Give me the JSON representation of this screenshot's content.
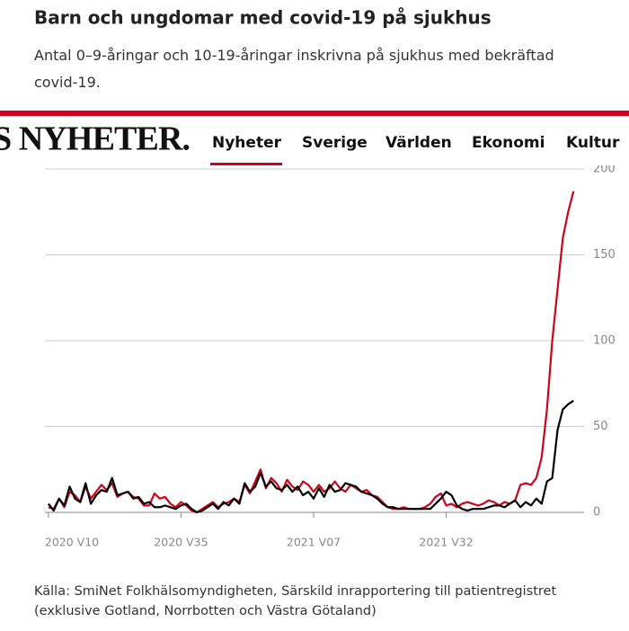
{
  "chart_data": {
    "type": "line",
    "title": "Barn och ungdomar med covid-19 på sjukhus",
    "subtitle": "Antal 0–9-åringar och 10-19-åringar inskrivna på sjukhus med bekräftad covid-19.",
    "source": [
      "Källa: SmiNet Folkhälsomyndigheten, Särskild inrapportering till patientregistret",
      "(exklusive Gotland, Norrbotten och Västra Götaland)"
    ],
    "series": [
      {
        "color": "#d0021b",
        "values": [
          3,
          2,
          8,
          3,
          12,
          10,
          6,
          15,
          8,
          12,
          16,
          13,
          17,
          9,
          11,
          12,
          9,
          8,
          4,
          4,
          11,
          8,
          9,
          5,
          3,
          6,
          4,
          1,
          0,
          2,
          4,
          6,
          3,
          5,
          6,
          8,
          6,
          16,
          11,
          18,
          25,
          14,
          20,
          17,
          12,
          19,
          15,
          13,
          18,
          16,
          12,
          16,
          12,
          14,
          18,
          14,
          12,
          16,
          14,
          12,
          13,
          10,
          9,
          6,
          3,
          2,
          2,
          3,
          2,
          2,
          2,
          3,
          5,
          9,
          11,
          4,
          5,
          3,
          5,
          6,
          5,
          4,
          5,
          7,
          6,
          4,
          6,
          5,
          7,
          16,
          17,
          16,
          20,
          32,
          60,
          100,
          130,
          160,
          175,
          187
        ]
      },
      {
        "color": "#000000",
        "values": [
          5,
          1,
          8,
          4,
          15,
          8,
          6,
          17,
          5,
          10,
          13,
          12,
          20,
          10,
          11,
          12,
          8,
          9,
          5,
          6,
          3,
          3,
          4,
          3,
          2,
          4,
          5,
          2,
          0,
          1,
          3,
          5,
          2,
          6,
          4,
          8,
          5,
          17,
          12,
          15,
          23,
          15,
          18,
          14,
          13,
          16,
          12,
          15,
          10,
          12,
          8,
          14,
          9,
          16,
          12,
          13,
          17,
          16,
          15,
          12,
          11,
          10,
          8,
          5,
          3,
          3,
          2,
          2,
          2,
          2,
          2,
          2,
          2,
          5,
          8,
          12,
          10,
          4,
          2,
          1,
          2,
          2,
          2,
          3,
          4,
          4,
          3,
          5,
          7,
          3,
          6,
          4,
          8,
          5,
          18,
          20,
          48,
          60,
          63,
          65
        ]
      }
    ],
    "xlim": [
      -1,
      101
    ],
    "xticks": [
      {
        "value": 0,
        "label": "2020 V10"
      },
      {
        "value": 25,
        "label": "2020 V35"
      },
      {
        "value": 50,
        "label": "2021 V07"
      },
      {
        "value": 75,
        "label": "2021 V32"
      }
    ],
    "ylim": [
      0,
      200
    ],
    "yticks": [
      0,
      50,
      100,
      150,
      200
    ],
    "grid": true
  },
  "nav": {
    "brand": "S NYHETER.",
    "items": [
      "Nyheter",
      "Sverige",
      "Världen",
      "Ekonomi",
      "Kultur"
    ]
  }
}
